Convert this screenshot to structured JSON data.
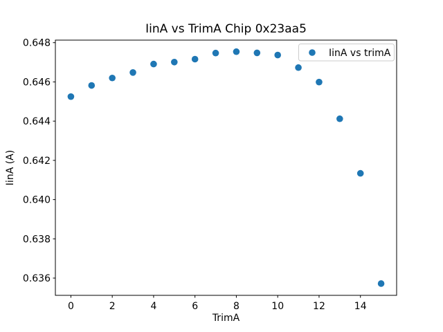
{
  "figure": {
    "background": "#ffffff",
    "frame_color": "#000000",
    "text_color": "#000000"
  },
  "chart_data": {
    "type": "scatter",
    "title": "IinA vs TrimA Chip 0x23aa5",
    "xlabel": "TrimA",
    "ylabel": "IinA (A)",
    "x": [
      0,
      1,
      2,
      3,
      4,
      5,
      6,
      7,
      8,
      9,
      10,
      11,
      12,
      13,
      14,
      15
    ],
    "y": [
      0.64525,
      0.64582,
      0.6462,
      0.64648,
      0.64691,
      0.64701,
      0.64716,
      0.64747,
      0.64754,
      0.64748,
      0.64737,
      0.64673,
      0.64599,
      0.64412,
      0.64134,
      0.63572
    ],
    "series": [
      {
        "name": "IinA vs trimA",
        "marker": "circle",
        "color": "#1f77b4"
      }
    ],
    "xlim": [
      -0.75,
      15.75
    ],
    "ylim": [
      0.63512,
      0.64813
    ],
    "xticks": [
      0,
      2,
      4,
      6,
      8,
      10,
      12,
      14
    ],
    "xtick_labels": [
      "0",
      "2",
      "4",
      "6",
      "8",
      "10",
      "12",
      "14"
    ],
    "yticks": [
      0.636,
      0.638,
      0.64,
      0.642,
      0.644,
      0.646,
      0.648
    ],
    "ytick_labels": [
      "0.636",
      "0.638",
      "0.640",
      "0.642",
      "0.644",
      "0.646",
      "0.648"
    ],
    "grid": false,
    "legend": {
      "position": "upper right",
      "entries": [
        {
          "label": "IinA vs trimA",
          "marker_color": "#1f77b4"
        }
      ]
    }
  }
}
